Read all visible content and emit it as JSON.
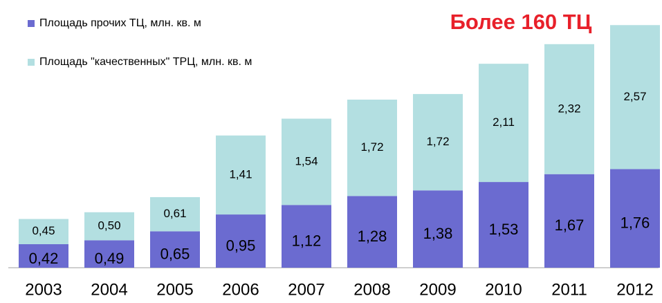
{
  "chart_data": {
    "type": "bar",
    "stacked": true,
    "annotation": "Более 160 ТЦ",
    "categories": [
      "2003",
      "2004",
      "2005",
      "2006",
      "2007",
      "2008",
      "2009",
      "2010",
      "2011",
      "2012"
    ],
    "series": [
      {
        "name": "Площадь прочих ТЦ, млн. кв. м",
        "color": "#6b6bd0",
        "values": [
          0.42,
          0.49,
          0.65,
          0.95,
          1.12,
          1.28,
          1.38,
          1.53,
          1.67,
          1.76
        ],
        "value_labels": [
          "0,42",
          "0,49",
          "0,65",
          "0,95",
          "1,12",
          "1,28",
          "1,38",
          "1,53",
          "1,67",
          "1,76"
        ]
      },
      {
        "name": "Площадь \"качественных\" ТРЦ, млн. кв. м",
        "color": "#b3dfe1",
        "values": [
          0.45,
          0.5,
          0.61,
          1.41,
          1.54,
          1.72,
          1.72,
          2.11,
          2.32,
          2.57
        ],
        "value_labels": [
          "0,45",
          "0,50",
          "0,61",
          "1,41",
          "1,54",
          "1,72",
          "1,72",
          "2,11",
          "2,32",
          "2,57"
        ]
      }
    ]
  }
}
